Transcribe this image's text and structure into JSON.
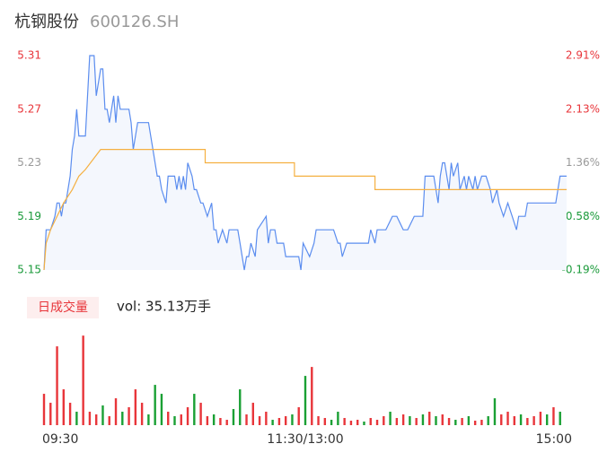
{
  "chart_data": [
    {
      "type": "line",
      "title": "杭钢股份",
      "subtitle": "600126.SH",
      "xlim": [
        0,
        240
      ],
      "xticks": [
        {
          "value": 0,
          "label": "09:30"
        },
        {
          "value": 120,
          "label": "11:30/13:00"
        },
        {
          "value": 240,
          "label": "15:00"
        }
      ],
      "ylim": [
        5.15,
        5.31
      ],
      "yticks": [
        5.31,
        5.27,
        5.23,
        5.19,
        5.15
      ],
      "ytick_colors": [
        "#e8353a",
        "#e8353a",
        "#999999",
        "#1a9a3a",
        "#1a9a3a"
      ],
      "y2lim": [
        -0.19,
        2.91
      ],
      "y2ticks": [
        {
          "value": 2.91,
          "label": "2.91%"
        },
        {
          "value": 2.13,
          "label": "2.13%"
        },
        {
          "value": 1.36,
          "label": "1.36%"
        },
        {
          "value": 0.58,
          "label": "0.58%"
        },
        {
          "value": -0.19,
          "label": "-0.19%"
        }
      ],
      "y2tick_colors": [
        "#e8353a",
        "#e8353a",
        "#999999",
        "#1a9a3a",
        "#1a9a3a"
      ],
      "series": [
        {
          "color": "#5b8def",
          "area_color": "#f4f7fd",
          "x": [
            0,
            1,
            3,
            5,
            6,
            7,
            8,
            9,
            10,
            12,
            13,
            14,
            15,
            16,
            19,
            20,
            21,
            23,
            24,
            26,
            27,
            28,
            29,
            30,
            32,
            33,
            34,
            35,
            36,
            39,
            40,
            41,
            43,
            48,
            50,
            52,
            53,
            54,
            56,
            57,
            58,
            60,
            61,
            62,
            63,
            64,
            65,
            66,
            68,
            69,
            70,
            72,
            73,
            75,
            77,
            78,
            79,
            80,
            82,
            84,
            85,
            89,
            90,
            92,
            93,
            94,
            95,
            97,
            98,
            102,
            103,
            104,
            106,
            107,
            110,
            111,
            117,
            118,
            119,
            122,
            124,
            125,
            130,
            133,
            135,
            136,
            137,
            139,
            145,
            149,
            150,
            152,
            153,
            157,
            160,
            162,
            165,
            167,
            170,
            174,
            175,
            179,
            181,
            182,
            183,
            184,
            186,
            187,
            188,
            190,
            191,
            193,
            194,
            195,
            197,
            198,
            199,
            201,
            203,
            205,
            206,
            208,
            209,
            211,
            213,
            215,
            217,
            218,
            221,
            222,
            235,
            237,
            240
          ],
          "values": [
            5.15,
            5.18,
            5.18,
            5.19,
            5.2,
            5.2,
            5.19,
            5.2,
            5.2,
            5.22,
            5.24,
            5.25,
            5.27,
            5.25,
            5.25,
            5.28,
            5.31,
            5.31,
            5.28,
            5.3,
            5.3,
            5.27,
            5.27,
            5.26,
            5.28,
            5.26,
            5.28,
            5.27,
            5.27,
            5.27,
            5.26,
            5.24,
            5.26,
            5.26,
            5.24,
            5.22,
            5.22,
            5.21,
            5.2,
            5.22,
            5.22,
            5.22,
            5.21,
            5.22,
            5.21,
            5.22,
            5.21,
            5.23,
            5.22,
            5.21,
            5.21,
            5.2,
            5.2,
            5.19,
            5.2,
            5.18,
            5.18,
            5.17,
            5.18,
            5.17,
            5.18,
            5.18,
            5.17,
            5.15,
            5.16,
            5.16,
            5.17,
            5.16,
            5.18,
            5.19,
            5.17,
            5.18,
            5.18,
            5.17,
            5.17,
            5.16,
            5.16,
            5.15,
            5.17,
            5.16,
            5.17,
            5.18,
            5.18,
            5.18,
            5.17,
            5.17,
            5.16,
            5.17,
            5.17,
            5.17,
            5.18,
            5.17,
            5.18,
            5.18,
            5.19,
            5.19,
            5.18,
            5.18,
            5.19,
            5.19,
            5.22,
            5.22,
            5.2,
            5.22,
            5.23,
            5.23,
            5.21,
            5.23,
            5.22,
            5.23,
            5.21,
            5.22,
            5.21,
            5.22,
            5.21,
            5.22,
            5.21,
            5.22,
            5.22,
            5.21,
            5.2,
            5.21,
            5.2,
            5.19,
            5.2,
            5.19,
            5.18,
            5.19,
            5.19,
            5.2,
            5.2,
            5.22,
            5.22
          ]
        },
        {
          "color": "#f5b041",
          "x": [
            0,
            1,
            3,
            6,
            9,
            13,
            16,
            19,
            26,
            74,
            74,
            115,
            115,
            152,
            152,
            240
          ],
          "values": [
            5.15,
            5.17,
            5.18,
            5.19,
            5.2,
            5.21,
            5.22,
            5.225,
            5.24,
            5.24,
            5.23,
            5.23,
            5.22,
            5.22,
            5.21,
            5.21
          ]
        }
      ]
    },
    {
      "type": "bar",
      "title": "日成交量",
      "subtitle": "vol: 35.13万手",
      "xlim": [
        0,
        240
      ],
      "ylim": [
        0,
        12500
      ],
      "x": [
        0,
        3,
        6,
        9,
        12,
        15,
        18,
        21,
        24,
        27,
        30,
        33,
        36,
        39,
        42,
        45,
        48,
        51,
        54,
        57,
        60,
        63,
        66,
        69,
        72,
        75,
        78,
        81,
        84,
        87,
        90,
        93,
        96,
        99,
        102,
        105,
        108,
        111,
        114,
        117,
        120,
        123,
        126,
        129,
        132,
        135,
        138,
        141,
        144,
        147,
        150,
        153,
        156,
        159,
        162,
        165,
        168,
        171,
        174,
        177,
        180,
        183,
        186,
        189,
        192,
        195,
        198,
        201,
        204,
        207,
        210,
        213,
        216,
        219,
        222,
        225,
        228,
        231,
        234,
        237
      ],
      "series": [
        {
          "color": "#e8353a",
          "values": [
            4200,
            3000,
            10560,
            4800,
            3000,
            null,
            12000,
            1800,
            1440,
            null,
            1200,
            3600,
            null,
            2400,
            4800,
            3000,
            null,
            null,
            null,
            1800,
            null,
            1440,
            2400,
            null,
            3000,
            1200,
            null,
            960,
            720,
            null,
            null,
            1440,
            3000,
            1200,
            1800,
            null,
            960,
            1200,
            null,
            2400,
            null,
            7800,
            1200,
            960,
            null,
            null,
            960,
            600,
            720,
            null,
            960,
            720,
            1200,
            null,
            960,
            1440,
            null,
            960,
            null,
            1800,
            null,
            1440,
            960,
            null,
            960,
            null,
            600,
            720,
            null,
            null,
            1440,
            1800,
            1200,
            null,
            960,
            1200,
            1800,
            null,
            2400,
            null
          ]
        },
        {
          "color": "#1aa034",
          "values": [
            null,
            null,
            null,
            null,
            null,
            1800,
            null,
            null,
            null,
            2640,
            null,
            null,
            1800,
            null,
            null,
            null,
            1440,
            5400,
            4200,
            null,
            1200,
            null,
            null,
            4200,
            null,
            null,
            1440,
            null,
            null,
            2160,
            4800,
            null,
            null,
            null,
            null,
            720,
            null,
            null,
            1440,
            null,
            6600,
            null,
            null,
            null,
            720,
            1800,
            null,
            null,
            null,
            480,
            null,
            null,
            null,
            1800,
            null,
            null,
            1200,
            null,
            1440,
            null,
            1200,
            null,
            null,
            720,
            null,
            1200,
            null,
            null,
            1200,
            3600,
            null,
            null,
            null,
            1440,
            null,
            null,
            null,
            1440,
            null,
            1800
          ]
        }
      ]
    }
  ]
}
